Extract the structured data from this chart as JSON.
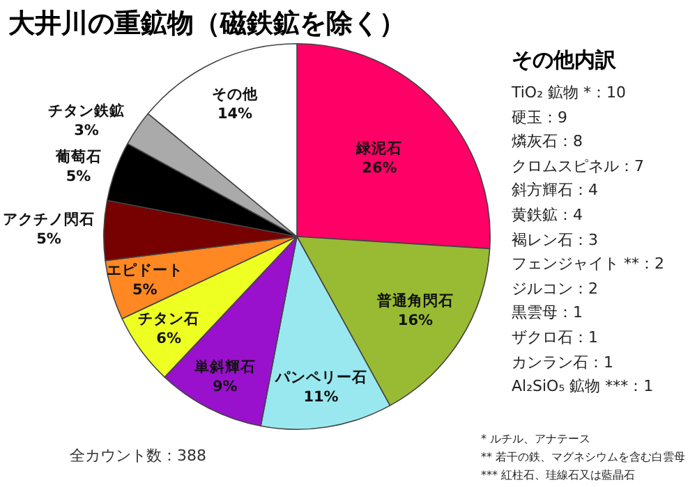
{
  "chart_data": {
    "type": "pie",
    "title": "大井川の重鉱物（磁鉄鉱を除く）",
    "categories": [
      "緑泥石",
      "普通角閃石",
      "パンペリー石",
      "単斜輝石",
      "チタン石",
      "エピドート",
      "アクチノ閃石",
      "葡萄石",
      "チタン鉄鉱",
      "その他"
    ],
    "values": [
      26,
      16,
      11,
      9,
      6,
      5,
      5,
      5,
      3,
      14
    ],
    "value_labels": [
      "26%",
      "16%",
      "11%",
      "9%",
      "6%",
      "5%",
      "5%",
      "5%",
      "3%",
      "14%"
    ],
    "colors": [
      "#ff0066",
      "#99bb33",
      "#99e8f0",
      "#9911cc",
      "#eeff22",
      "#ff8822",
      "#770000",
      "#000000",
      "#aaaaaa",
      "#ffffff"
    ],
    "annotations": [
      "全カウント数：388",
      "その他内訳",
      "TiO₂ 鉱物 *：10",
      "硬玉：9",
      "燐灰石：8",
      "クロムスピネル：7",
      "斜方輝石：4",
      "黄鉄鉱：4",
      "褐レン石：3",
      "フェンジャイト **：2",
      "ジルコン：2",
      "黒雲母：1",
      "ザクロ石：1",
      "カンラン石：1",
      "Al₂SiO₅ 鉱物 ***：1",
      "* ルチル、アナテース",
      "** 若干の鉄、マグネシウムを含む白雲母",
      "*** 紅柱石、珪線石又は藍晶石"
    ]
  }
}
